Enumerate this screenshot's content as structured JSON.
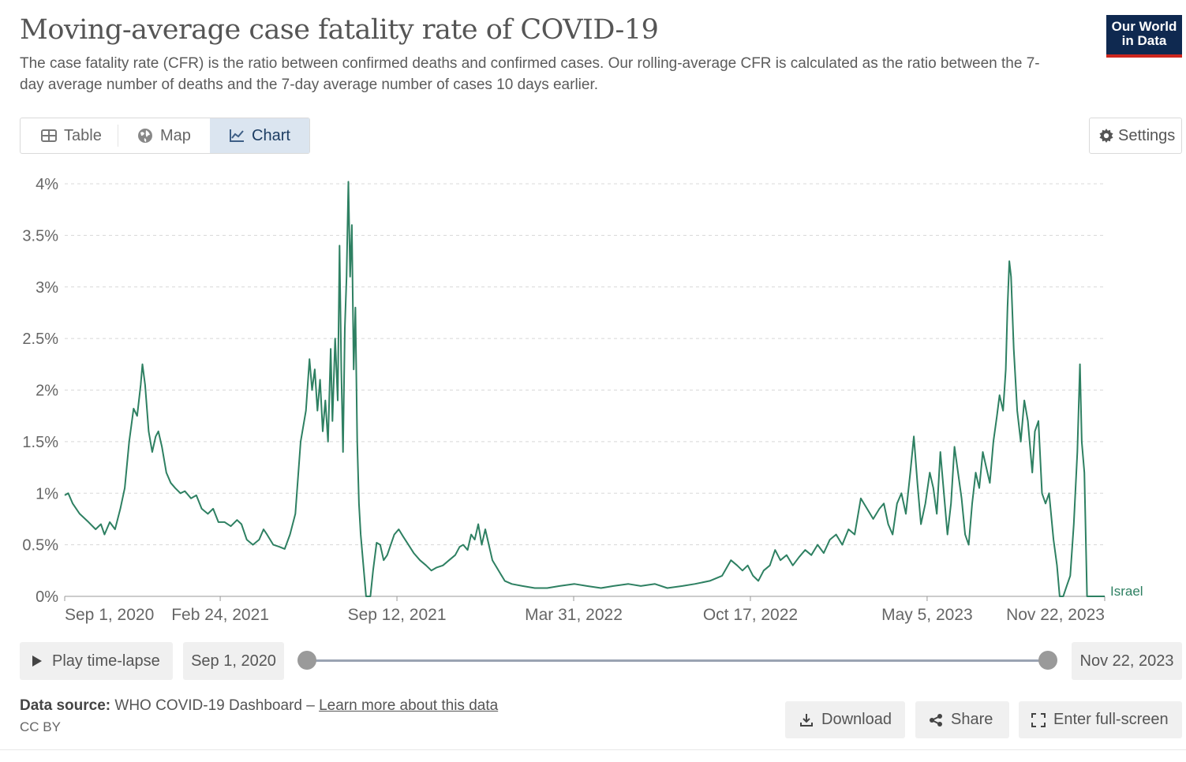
{
  "header": {
    "title": "Moving-average case fatality rate of COVID-19",
    "subtitle": "The case fatality rate (CFR) is the ratio between confirmed deaths and confirmed cases. Our rolling-average CFR is calculated as the ratio between the 7-day average number of deaths and the 7-day average number of cases 10 days earlier.",
    "logo_line1": "Our World",
    "logo_line2": "in Data"
  },
  "tabs": [
    {
      "label": "Table",
      "icon": "table-icon"
    },
    {
      "label": "Map",
      "icon": "globe-icon"
    },
    {
      "label": "Chart",
      "icon": "line-chart-icon",
      "active": true
    }
  ],
  "settings_label": "Settings",
  "colors": {
    "series": "#2e8062",
    "accent": "#ce261e",
    "logo_bg": "#0f2950",
    "active_tab": "#dbe5f0"
  },
  "chart_data": {
    "type": "line",
    "title": "",
    "xlabel": "",
    "ylabel": "",
    "x_ticks": [
      "Sep 1, 2020",
      "Feb 24, 2021",
      "Sep 12, 2021",
      "Mar 31, 2022",
      "Oct 17, 2022",
      "May 5, 2023",
      "Nov 22, 2023"
    ],
    "x_range": [
      "2020-09-01",
      "2023-11-22"
    ],
    "y_ticks": [
      "0%",
      "0.5%",
      "1%",
      "1.5%",
      "2%",
      "2.5%",
      "3%",
      "3.5%",
      "4%"
    ],
    "ylim": [
      0,
      4
    ],
    "grid": "horizontal",
    "series": [
      {
        "name": "Israel",
        "color": "#2e8062",
        "points": [
          [
            "2020-09-01",
            0.98
          ],
          [
            "2020-09-05",
            1.0
          ],
          [
            "2020-09-10",
            0.9
          ],
          [
            "2020-09-18",
            0.8
          ],
          [
            "2020-09-28",
            0.72
          ],
          [
            "2020-10-06",
            0.65
          ],
          [
            "2020-10-12",
            0.7
          ],
          [
            "2020-10-16",
            0.6
          ],
          [
            "2020-10-22",
            0.72
          ],
          [
            "2020-10-28",
            0.65
          ],
          [
            "2020-11-03",
            0.85
          ],
          [
            "2020-11-08",
            1.05
          ],
          [
            "2020-11-13",
            1.5
          ],
          [
            "2020-11-18",
            1.82
          ],
          [
            "2020-11-22",
            1.75
          ],
          [
            "2020-11-26",
            2.05
          ],
          [
            "2020-11-28",
            2.25
          ],
          [
            "2020-12-01",
            2.05
          ],
          [
            "2020-12-05",
            1.6
          ],
          [
            "2020-12-09",
            1.4
          ],
          [
            "2020-12-13",
            1.55
          ],
          [
            "2020-12-16",
            1.6
          ],
          [
            "2020-12-20",
            1.45
          ],
          [
            "2020-12-25",
            1.2
          ],
          [
            "2020-12-30",
            1.1
          ],
          [
            "2021-01-04",
            1.05
          ],
          [
            "2021-01-10",
            1.0
          ],
          [
            "2021-01-15",
            1.02
          ],
          [
            "2021-01-22",
            0.95
          ],
          [
            "2021-01-28",
            0.98
          ],
          [
            "2021-02-03",
            0.85
          ],
          [
            "2021-02-10",
            0.8
          ],
          [
            "2021-02-16",
            0.85
          ],
          [
            "2021-02-22",
            0.72
          ],
          [
            "2021-03-01",
            0.72
          ],
          [
            "2021-03-08",
            0.68
          ],
          [
            "2021-03-15",
            0.74
          ],
          [
            "2021-03-20",
            0.7
          ],
          [
            "2021-03-26",
            0.55
          ],
          [
            "2021-04-02",
            0.5
          ],
          [
            "2021-04-09",
            0.55
          ],
          [
            "2021-04-14",
            0.65
          ],
          [
            "2021-04-18",
            0.6
          ],
          [
            "2021-04-25",
            0.5
          ],
          [
            "2021-05-02",
            0.48
          ],
          [
            "2021-05-08",
            0.46
          ],
          [
            "2021-05-14",
            0.6
          ],
          [
            "2021-05-20",
            0.8
          ],
          [
            "2021-05-26",
            1.5
          ],
          [
            "2021-06-01",
            1.8
          ],
          [
            "2021-06-05",
            2.3
          ],
          [
            "2021-06-08",
            2.0
          ],
          [
            "2021-06-11",
            2.2
          ],
          [
            "2021-06-14",
            1.8
          ],
          [
            "2021-06-17",
            2.1
          ],
          [
            "2021-06-20",
            1.6
          ],
          [
            "2021-06-23",
            1.9
          ],
          [
            "2021-06-26",
            1.5
          ],
          [
            "2021-06-29",
            2.4
          ],
          [
            "2021-07-01",
            1.7
          ],
          [
            "2021-07-04",
            2.5
          ],
          [
            "2021-07-07",
            1.9
          ],
          [
            "2021-07-09",
            3.4
          ],
          [
            "2021-07-11",
            2.2
          ],
          [
            "2021-07-13",
            1.4
          ],
          [
            "2021-07-15",
            2.6
          ],
          [
            "2021-07-17",
            3.1
          ],
          [
            "2021-07-19",
            4.02
          ],
          [
            "2021-07-21",
            3.1
          ],
          [
            "2021-07-23",
            3.6
          ],
          [
            "2021-07-25",
            2.2
          ],
          [
            "2021-07-27",
            2.8
          ],
          [
            "2021-07-29",
            1.5
          ],
          [
            "2021-07-31",
            0.9
          ],
          [
            "2021-08-02",
            0.6
          ],
          [
            "2021-08-05",
            0.3
          ],
          [
            "2021-08-08",
            0.0
          ],
          [
            "2021-08-13",
            0.0
          ],
          [
            "2021-08-16",
            0.25
          ],
          [
            "2021-08-20",
            0.52
          ],
          [
            "2021-08-24",
            0.5
          ],
          [
            "2021-08-28",
            0.35
          ],
          [
            "2021-09-01",
            0.4
          ],
          [
            "2021-09-05",
            0.5
          ],
          [
            "2021-09-09",
            0.6
          ],
          [
            "2021-09-14",
            0.65
          ],
          [
            "2021-09-19",
            0.58
          ],
          [
            "2021-09-25",
            0.5
          ],
          [
            "2021-10-01",
            0.42
          ],
          [
            "2021-10-08",
            0.35
          ],
          [
            "2021-10-15",
            0.3
          ],
          [
            "2021-10-21",
            0.25
          ],
          [
            "2021-10-27",
            0.28
          ],
          [
            "2021-11-03",
            0.3
          ],
          [
            "2021-11-10",
            0.35
          ],
          [
            "2021-11-17",
            0.4
          ],
          [
            "2021-11-22",
            0.48
          ],
          [
            "2021-11-26",
            0.5
          ],
          [
            "2021-12-01",
            0.45
          ],
          [
            "2021-12-05",
            0.6
          ],
          [
            "2021-12-09",
            0.55
          ],
          [
            "2021-12-13",
            0.7
          ],
          [
            "2021-12-17",
            0.5
          ],
          [
            "2021-12-21",
            0.65
          ],
          [
            "2021-12-25",
            0.5
          ],
          [
            "2021-12-29",
            0.35
          ],
          [
            "2022-01-05",
            0.25
          ],
          [
            "2022-01-12",
            0.15
          ],
          [
            "2022-01-20",
            0.12
          ],
          [
            "2022-02-01",
            0.1
          ],
          [
            "2022-02-15",
            0.08
          ],
          [
            "2022-03-01",
            0.08
          ],
          [
            "2022-03-15",
            0.1
          ],
          [
            "2022-04-01",
            0.12
          ],
          [
            "2022-04-15",
            0.1
          ],
          [
            "2022-05-01",
            0.08
          ],
          [
            "2022-05-15",
            0.1
          ],
          [
            "2022-06-01",
            0.12
          ],
          [
            "2022-06-15",
            0.1
          ],
          [
            "2022-07-01",
            0.12
          ],
          [
            "2022-07-15",
            0.08
          ],
          [
            "2022-08-01",
            0.1
          ],
          [
            "2022-08-15",
            0.12
          ],
          [
            "2022-09-01",
            0.15
          ],
          [
            "2022-09-15",
            0.2
          ],
          [
            "2022-09-25",
            0.35
          ],
          [
            "2022-10-02",
            0.3
          ],
          [
            "2022-10-08",
            0.25
          ],
          [
            "2022-10-14",
            0.3
          ],
          [
            "2022-10-20",
            0.2
          ],
          [
            "2022-10-26",
            0.15
          ],
          [
            "2022-11-01",
            0.25
          ],
          [
            "2022-11-08",
            0.3
          ],
          [
            "2022-11-14",
            0.45
          ],
          [
            "2022-11-20",
            0.35
          ],
          [
            "2022-11-27",
            0.4
          ],
          [
            "2022-12-04",
            0.3
          ],
          [
            "2022-12-11",
            0.38
          ],
          [
            "2022-12-18",
            0.45
          ],
          [
            "2022-12-25",
            0.4
          ],
          [
            "2023-01-01",
            0.5
          ],
          [
            "2023-01-08",
            0.42
          ],
          [
            "2023-01-15",
            0.55
          ],
          [
            "2023-01-22",
            0.6
          ],
          [
            "2023-01-29",
            0.5
          ],
          [
            "2023-02-05",
            0.65
          ],
          [
            "2023-02-12",
            0.6
          ],
          [
            "2023-02-19",
            0.95
          ],
          [
            "2023-02-26",
            0.85
          ],
          [
            "2023-03-05",
            0.75
          ],
          [
            "2023-03-12",
            0.85
          ],
          [
            "2023-03-17",
            0.9
          ],
          [
            "2023-03-22",
            0.7
          ],
          [
            "2023-03-27",
            0.6
          ],
          [
            "2023-04-01",
            0.9
          ],
          [
            "2023-04-06",
            1.0
          ],
          [
            "2023-04-11",
            0.8
          ],
          [
            "2023-04-16",
            1.2
          ],
          [
            "2023-04-20",
            1.55
          ],
          [
            "2023-04-24",
            1.1
          ],
          [
            "2023-04-28",
            0.7
          ],
          [
            "2023-05-03",
            0.9
          ],
          [
            "2023-05-08",
            1.2
          ],
          [
            "2023-05-12",
            1.05
          ],
          [
            "2023-05-16",
            0.8
          ],
          [
            "2023-05-20",
            1.4
          ],
          [
            "2023-05-24",
            1.0
          ],
          [
            "2023-05-28",
            0.6
          ],
          [
            "2023-06-01",
            0.9
          ],
          [
            "2023-06-05",
            1.45
          ],
          [
            "2023-06-09",
            1.2
          ],
          [
            "2023-06-13",
            0.95
          ],
          [
            "2023-06-17",
            0.6
          ],
          [
            "2023-06-21",
            0.5
          ],
          [
            "2023-06-25",
            0.9
          ],
          [
            "2023-06-29",
            1.2
          ],
          [
            "2023-07-03",
            1.05
          ],
          [
            "2023-07-07",
            1.4
          ],
          [
            "2023-07-11",
            1.25
          ],
          [
            "2023-07-15",
            1.1
          ],
          [
            "2023-07-19",
            1.5
          ],
          [
            "2023-07-23",
            1.75
          ],
          [
            "2023-07-26",
            1.95
          ],
          [
            "2023-07-30",
            1.8
          ],
          [
            "2023-08-02",
            2.2
          ],
          [
            "2023-08-04",
            2.8
          ],
          [
            "2023-08-06",
            3.25
          ],
          [
            "2023-08-08",
            3.1
          ],
          [
            "2023-08-11",
            2.4
          ],
          [
            "2023-08-15",
            1.8
          ],
          [
            "2023-08-19",
            1.5
          ],
          [
            "2023-08-23",
            1.9
          ],
          [
            "2023-08-27",
            1.7
          ],
          [
            "2023-09-01",
            1.2
          ],
          [
            "2023-09-04",
            1.6
          ],
          [
            "2023-09-08",
            1.7
          ],
          [
            "2023-09-12",
            1.0
          ],
          [
            "2023-09-16",
            0.9
          ],
          [
            "2023-09-20",
            1.0
          ],
          [
            "2023-09-25",
            0.55
          ],
          [
            "2023-09-29",
            0.3
          ],
          [
            "2023-10-02",
            0.0
          ],
          [
            "2023-10-06",
            0.0
          ],
          [
            "2023-10-10",
            0.1
          ],
          [
            "2023-10-14",
            0.2
          ],
          [
            "2023-10-18",
            0.7
          ],
          [
            "2023-10-22",
            1.4
          ],
          [
            "2023-10-25",
            2.25
          ],
          [
            "2023-10-27",
            1.5
          ],
          [
            "2023-10-30",
            1.2
          ],
          [
            "2023-11-02",
            0.0
          ],
          [
            "2023-11-22",
            0.0
          ]
        ]
      }
    ]
  },
  "timeline": {
    "play_label": "Play time-lapse",
    "start_label": "Sep 1, 2020",
    "end_label": "Nov 22, 2023"
  },
  "footer": {
    "source_label": "Data source:",
    "source_value": "WHO COVID-19 Dashboard – ",
    "source_link": "Learn more about this data",
    "license": "CC BY",
    "download_label": "Download",
    "share_label": "Share",
    "fullscreen_label": "Enter full-screen"
  }
}
